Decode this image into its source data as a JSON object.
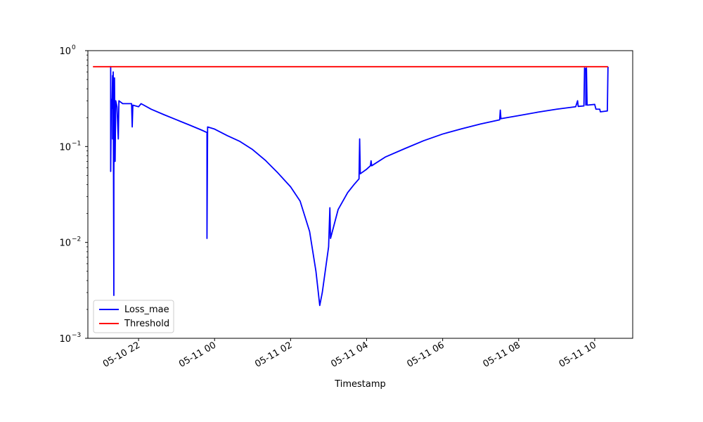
{
  "chart_data": {
    "type": "line",
    "title": "",
    "xlabel": "Timestamp",
    "ylabel": "",
    "yscale": "log",
    "xlim": [
      "2024-05-10 20:40",
      "2024-05-11 11:00"
    ],
    "ylim": [
      0.001,
      1
    ],
    "x_ticks": [
      {
        "x": "2024-05-10 22:00",
        "label": "05-10 22"
      },
      {
        "x": "2024-05-11 00:00",
        "label": "05-11 00"
      },
      {
        "x": "2024-05-11 02:00",
        "label": "05-11 02"
      },
      {
        "x": "2024-05-11 04:00",
        "label": "05-11 04"
      },
      {
        "x": "2024-05-11 06:00",
        "label": "05-11 06"
      },
      {
        "x": "2024-05-11 08:00",
        "label": "05-11 08"
      },
      {
        "x": "2024-05-11 10:00",
        "label": "05-11 10"
      }
    ],
    "y_ticks": [
      {
        "y": 0.001,
        "base": "10",
        "exp": "−3"
      },
      {
        "y": 0.01,
        "base": "10",
        "exp": "−2"
      },
      {
        "y": 0.1,
        "base": "10",
        "exp": "−1"
      },
      {
        "y": 1,
        "base": "10",
        "exp": "0"
      }
    ],
    "grid": false,
    "legend": "lower-left",
    "series": [
      {
        "name": "Loss_mae",
        "color": "#0000ff",
        "points": [
          [
            "2024-05-10 21:15",
            0.68
          ],
          [
            "2024-05-10 21:16",
            0.68
          ],
          [
            "2024-05-10 21:16",
            0.055
          ],
          [
            "2024-05-10 21:17",
            0.31
          ],
          [
            "2024-05-10 21:18",
            0.25
          ],
          [
            "2024-05-10 21:19",
            0.55
          ],
          [
            "2024-05-10 21:19",
            0.12
          ],
          [
            "2024-05-10 21:20",
            0.6
          ],
          [
            "2024-05-10 21:21",
            0.0028
          ],
          [
            "2024-05-10 21:21",
            0.05
          ],
          [
            "2024-05-10 21:22",
            0.52
          ],
          [
            "2024-05-10 21:23",
            0.07
          ],
          [
            "2024-05-10 21:24",
            0.3
          ],
          [
            "2024-05-10 21:26",
            0.26
          ],
          [
            "2024-05-10 21:28",
            0.12
          ],
          [
            "2024-05-10 21:29",
            0.3
          ],
          [
            "2024-05-10 21:35",
            0.28
          ],
          [
            "2024-05-10 21:49",
            0.28
          ],
          [
            "2024-05-10 21:50",
            0.16
          ],
          [
            "2024-05-10 21:51",
            0.27
          ],
          [
            "2024-05-10 22:00",
            0.26
          ],
          [
            "2024-05-10 22:04",
            0.28
          ],
          [
            "2024-05-10 22:20",
            0.245
          ],
          [
            "2024-05-10 22:40",
            0.215
          ],
          [
            "2024-05-10 23:00",
            0.19
          ],
          [
            "2024-05-10 23:20",
            0.168
          ],
          [
            "2024-05-10 23:40",
            0.148
          ],
          [
            "2024-05-10 23:48",
            0.14
          ],
          [
            "2024-05-10 23:48",
            0.011
          ],
          [
            "2024-05-10 23:49",
            0.16
          ],
          [
            "2024-05-11 00:00",
            0.152
          ],
          [
            "2024-05-11 00:20",
            0.13
          ],
          [
            "2024-05-11 00:40",
            0.113
          ],
          [
            "2024-05-11 01:00",
            0.093
          ],
          [
            "2024-05-11 01:20",
            0.072
          ],
          [
            "2024-05-11 01:40",
            0.053
          ],
          [
            "2024-05-11 02:00",
            0.038
          ],
          [
            "2024-05-11 02:15",
            0.027
          ],
          [
            "2024-05-11 02:30",
            0.013
          ],
          [
            "2024-05-11 02:40",
            0.005
          ],
          [
            "2024-05-11 02:46",
            0.0022
          ],
          [
            "2024-05-11 02:50",
            0.003
          ],
          [
            "2024-05-11 03:00",
            0.009
          ],
          [
            "2024-05-11 03:02",
            0.023
          ],
          [
            "2024-05-11 03:03",
            0.011
          ],
          [
            "2024-05-11 03:15",
            0.022
          ],
          [
            "2024-05-11 03:30",
            0.033
          ],
          [
            "2024-05-11 03:40",
            0.04
          ],
          [
            "2024-05-11 03:48",
            0.046
          ],
          [
            "2024-05-11 03:49",
            0.12
          ],
          [
            "2024-05-11 03:50",
            0.052
          ],
          [
            "2024-05-11 04:00",
            0.058
          ],
          [
            "2024-05-11 04:06",
            0.063
          ],
          [
            "2024-05-11 04:07",
            0.071
          ],
          [
            "2024-05-11 04:08",
            0.063
          ],
          [
            "2024-05-11 04:30",
            0.078
          ],
          [
            "2024-05-11 05:00",
            0.095
          ],
          [
            "2024-05-11 05:30",
            0.115
          ],
          [
            "2024-05-11 06:00",
            0.135
          ],
          [
            "2024-05-11 06:30",
            0.153
          ],
          [
            "2024-05-11 07:00",
            0.172
          ],
          [
            "2024-05-11 07:30",
            0.19
          ],
          [
            "2024-05-11 07:31",
            0.24
          ],
          [
            "2024-05-11 07:32",
            0.195
          ],
          [
            "2024-05-11 08:00",
            0.21
          ],
          [
            "2024-05-11 08:30",
            0.228
          ],
          [
            "2024-05-11 09:00",
            0.245
          ],
          [
            "2024-05-11 09:30",
            0.26
          ],
          [
            "2024-05-11 09:33",
            0.3
          ],
          [
            "2024-05-11 09:34",
            0.262
          ],
          [
            "2024-05-11 09:43",
            0.265
          ],
          [
            "2024-05-11 09:44",
            0.66
          ],
          [
            "2024-05-11 09:46",
            0.64
          ],
          [
            "2024-05-11 09:46",
            0.27
          ],
          [
            "2024-05-11 09:47",
            0.66
          ],
          [
            "2024-05-11 09:48",
            0.27
          ],
          [
            "2024-05-11 10:00",
            0.275
          ],
          [
            "2024-05-11 10:02",
            0.245
          ],
          [
            "2024-05-11 10:08",
            0.245
          ],
          [
            "2024-05-11 10:09",
            0.23
          ],
          [
            "2024-05-11 10:20",
            0.235
          ],
          [
            "2024-05-11 10:21",
            0.68
          ]
        ]
      },
      {
        "name": "Threshold",
        "color": "#ff0000",
        "points": [
          [
            "2024-05-10 20:48",
            0.68
          ],
          [
            "2024-05-11 10:21",
            0.68
          ]
        ]
      }
    ]
  }
}
